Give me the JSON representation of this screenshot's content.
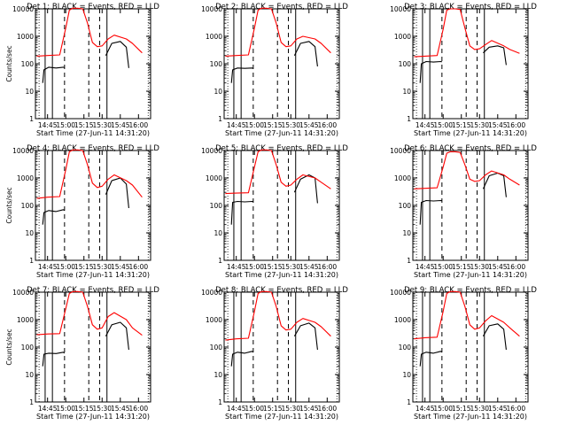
{
  "figure": {
    "colors": {
      "events": "#000000",
      "lld": "#ff0000",
      "axes": "#000000",
      "background": "#ffffff"
    }
  },
  "chart_data": [
    {
      "type": "line",
      "title": "Det 1: BLACK = Events, RED = LLD",
      "xlabel": "Start Time (27-Jun-11 14:31:20)",
      "ylabel": "Counts/sec",
      "yscale": "log",
      "xlim": [
        "14:35",
        "16:10"
      ],
      "ylim": [
        1,
        10000
      ],
      "xticks": [
        "14:45",
        "15:00",
        "15:15",
        "15:30",
        "15:45",
        "16:00"
      ],
      "yticks": [
        "1",
        "10",
        "100",
        "1000",
        "10000"
      ],
      "grid": false,
      "legend": "none",
      "solid_vlines": [
        "14:43",
        "14:49",
        "15:34"
      ],
      "dashed_vlines": [
        "14:59",
        "15:19",
        "15:28"
      ],
      "dotted_vlines": [
        "14:38",
        "16:08"
      ],
      "series": [
        {
          "name": "BLACK",
          "x": [
            "14:41",
            "14:42",
            "14:46",
            "14:52",
            "14:58",
            "14:59",
            "15:00",
            "15:30",
            "15:33",
            "15:38",
            "15:45",
            "15:50",
            "15:52"
          ],
          "y": [
            20,
            60,
            75,
            70,
            75,
            72,
            null,
            null,
            200,
            550,
            650,
            400,
            70
          ]
        },
        {
          "name": "RED",
          "x": [
            "14:36",
            "14:45",
            "14:55",
            "15:00",
            "15:03",
            "15:06",
            "15:10",
            "15:14",
            "15:18",
            "15:22",
            "15:26",
            "15:30",
            "15:35",
            "15:40",
            "15:50",
            "15:55",
            "16:03"
          ],
          "y": [
            190,
            200,
            210,
            2000,
            9000,
            10500,
            10500,
            10000,
            3000,
            600,
            420,
            450,
            800,
            1100,
            800,
            550,
            250
          ]
        }
      ]
    },
    {
      "type": "line",
      "title": "Det 2: BLACK = Events, RED = LLD",
      "xlabel": "Start Time (27-Jun-11 14:31:20)",
      "ylabel": "",
      "yscale": "log",
      "xlim": [
        "14:35",
        "16:10"
      ],
      "ylim": [
        1,
        10000
      ],
      "xticks": [
        "14:45",
        "15:00",
        "15:15",
        "15:30",
        "15:45",
        "16:00"
      ],
      "yticks": [
        "1",
        "10",
        "100",
        "1000",
        "10000"
      ],
      "grid": false,
      "legend": "none",
      "solid_vlines": [
        "14:43",
        "14:49",
        "15:34"
      ],
      "dashed_vlines": [
        "14:59",
        "15:19",
        "15:28"
      ],
      "dotted_vlines": [
        "14:38",
        "16:08"
      ],
      "series": [
        {
          "name": "BLACK",
          "x": [
            "14:41",
            "14:42",
            "14:46",
            "14:52",
            "14:58",
            "14:59",
            "15:00",
            "15:30",
            "15:33",
            "15:38",
            "15:45",
            "15:50",
            "15:52"
          ],
          "y": [
            20,
            60,
            70,
            68,
            70,
            68,
            null,
            null,
            200,
            550,
            650,
            420,
            80
          ]
        },
        {
          "name": "RED",
          "x": [
            "14:36",
            "14:45",
            "14:55",
            "15:00",
            "15:03",
            "15:06",
            "15:10",
            "15:14",
            "15:18",
            "15:22",
            "15:26",
            "15:30",
            "15:35",
            "15:40",
            "15:50",
            "15:55",
            "16:03"
          ],
          "y": [
            190,
            200,
            210,
            2000,
            9000,
            10500,
            10500,
            10000,
            3000,
            600,
            420,
            450,
            800,
            1000,
            800,
            550,
            250
          ]
        }
      ]
    },
    {
      "type": "line",
      "title": "Det 3: BLACK = Events, RED = LLD",
      "xlabel": "Start Time (27-Jun-11 14:31:20)",
      "ylabel": "",
      "yscale": "log",
      "xlim": [
        "14:35",
        "16:10"
      ],
      "ylim": [
        1,
        10000
      ],
      "xticks": [
        "14:45",
        "15:00",
        "15:15",
        "15:30",
        "15:45",
        "16:00"
      ],
      "yticks": [
        "1",
        "10",
        "100",
        "1000",
        "10000"
      ],
      "grid": false,
      "legend": "none",
      "solid_vlines": [
        "14:43",
        "14:49",
        "15:34"
      ],
      "dashed_vlines": [
        "14:59",
        "15:19",
        "15:28"
      ],
      "dotted_vlines": [
        "14:38",
        "16:08"
      ],
      "series": [
        {
          "name": "BLACK",
          "x": [
            "14:41",
            "14:42",
            "14:46",
            "14:52",
            "14:58",
            "14:59",
            "15:00",
            "15:30",
            "15:33",
            "15:38",
            "15:45",
            "15:50",
            "15:52"
          ],
          "y": [
            20,
            100,
            120,
            115,
            120,
            118,
            null,
            null,
            250,
            400,
            450,
            380,
            90
          ]
        },
        {
          "name": "RED",
          "x": [
            "14:36",
            "14:45",
            "14:55",
            "15:00",
            "15:03",
            "15:06",
            "15:10",
            "15:14",
            "15:18",
            "15:22",
            "15:26",
            "15:30",
            "15:35",
            "15:40",
            "15:50",
            "15:55",
            "16:03"
          ],
          "y": [
            180,
            190,
            200,
            1800,
            9000,
            10000,
            10000,
            9500,
            2000,
            450,
            330,
            350,
            500,
            700,
            450,
            330,
            240
          ]
        }
      ]
    },
    {
      "type": "line",
      "title": "Det 4: BLACK = Events, RED = LLD",
      "xlabel": "Start Time (27-Jun-11 14:31:20)",
      "ylabel": "Counts/sec",
      "yscale": "log",
      "xlim": [
        "14:35",
        "16:10"
      ],
      "ylim": [
        1,
        10000
      ],
      "xticks": [
        "14:45",
        "15:00",
        "15:15",
        "15:30",
        "15:45",
        "16:00"
      ],
      "yticks": [
        "1",
        "10",
        "100",
        "1000",
        "10000"
      ],
      "grid": false,
      "legend": "none",
      "solid_vlines": [
        "14:43",
        "14:49",
        "15:34"
      ],
      "dashed_vlines": [
        "14:59",
        "15:19",
        "15:28"
      ],
      "dotted_vlines": [
        "14:38",
        "16:08"
      ],
      "series": [
        {
          "name": "BLACK",
          "x": [
            "14:41",
            "14:42",
            "14:46",
            "14:52",
            "14:58",
            "14:59",
            "15:00",
            "15:30",
            "15:33",
            "15:38",
            "15:45",
            "15:50",
            "15:52"
          ],
          "y": [
            20,
            55,
            65,
            60,
            70,
            65,
            null,
            null,
            250,
            800,
            1000,
            600,
            80
          ]
        },
        {
          "name": "RED",
          "x": [
            "14:36",
            "14:45",
            "14:55",
            "15:00",
            "15:03",
            "15:06",
            "15:10",
            "15:14",
            "15:18",
            "15:22",
            "15:26",
            "15:30",
            "15:35",
            "15:40",
            "15:50",
            "15:55",
            "16:03"
          ],
          "y": [
            180,
            200,
            210,
            2000,
            9000,
            10500,
            10500,
            10000,
            3000,
            650,
            450,
            500,
            900,
            1300,
            800,
            550,
            200
          ]
        }
      ]
    },
    {
      "type": "line",
      "title": "Det 5: BLACK = Events, RED = LLD",
      "xlabel": "Start Time (27-Jun-11 14:31:20)",
      "ylabel": "",
      "yscale": "log",
      "xlim": [
        "14:35",
        "16:10"
      ],
      "ylim": [
        1,
        10000
      ],
      "xticks": [
        "14:45",
        "15:00",
        "15:15",
        "15:30",
        "15:45",
        "16:00"
      ],
      "yticks": [
        "1",
        "10",
        "100",
        "1000",
        "10000"
      ],
      "grid": false,
      "legend": "none",
      "solid_vlines": [
        "14:43",
        "14:49",
        "15:34"
      ],
      "dashed_vlines": [
        "14:59",
        "15:19",
        "15:28"
      ],
      "dotted_vlines": [
        "14:38",
        "16:08"
      ],
      "series": [
        {
          "name": "BLACK",
          "x": [
            "14:41",
            "14:42",
            "14:46",
            "14:52",
            "14:58",
            "14:59",
            "15:00",
            "15:30",
            "15:33",
            "15:38",
            "15:45",
            "15:50",
            "15:52"
          ],
          "y": [
            20,
            130,
            140,
            135,
            140,
            138,
            null,
            null,
            300,
            900,
            1300,
            1000,
            120
          ]
        },
        {
          "name": "RED",
          "x": [
            "14:36",
            "14:45",
            "14:55",
            "15:00",
            "15:03",
            "15:06",
            "15:10",
            "15:14",
            "15:18",
            "15:22",
            "15:26",
            "15:30",
            "15:35",
            "15:40",
            "15:50",
            "15:55",
            "16:03"
          ],
          "y": [
            270,
            280,
            290,
            2500,
            9000,
            10500,
            10500,
            10000,
            3000,
            700,
            500,
            550,
            900,
            1300,
            1000,
            700,
            400
          ]
        }
      ]
    },
    {
      "type": "line",
      "title": "Det 6: BLACK = Events, RED = LLD",
      "xlabel": "Start Time (27-Jun-11 14:31:20)",
      "ylabel": "",
      "yscale": "log",
      "xlim": [
        "14:35",
        "16:10"
      ],
      "ylim": [
        1,
        10000
      ],
      "xticks": [
        "14:45",
        "15:00",
        "15:15",
        "15:30",
        "15:45",
        "16:00"
      ],
      "yticks": [
        "1",
        "10",
        "100",
        "1000",
        "10000"
      ],
      "grid": false,
      "legend": "none",
      "solid_vlines": [
        "14:43",
        "14:49",
        "15:34"
      ],
      "dashed_vlines": [
        "14:59",
        "15:19",
        "15:28"
      ],
      "dotted_vlines": [
        "14:38",
        "16:08"
      ],
      "series": [
        {
          "name": "BLACK",
          "x": [
            "14:41",
            "14:42",
            "14:46",
            "14:52",
            "14:58",
            "14:59",
            "15:00",
            "15:30",
            "15:33",
            "15:38",
            "15:45",
            "15:50",
            "15:52"
          ],
          "y": [
            20,
            130,
            150,
            145,
            150,
            148,
            null,
            null,
            400,
            1200,
            1500,
            1200,
            200
          ]
        },
        {
          "name": "RED",
          "x": [
            "14:36",
            "14:45",
            "14:55",
            "15:00",
            "15:03",
            "15:06",
            "15:10",
            "15:14",
            "15:18",
            "15:22",
            "15:26",
            "15:30",
            "15:35",
            "15:40",
            "15:50",
            "15:55",
            "16:03"
          ],
          "y": [
            400,
            420,
            440,
            2500,
            8000,
            9000,
            9000,
            8500,
            3000,
            900,
            750,
            800,
            1300,
            1800,
            1300,
            900,
            550
          ]
        }
      ]
    },
    {
      "type": "line",
      "title": "Det 7: BLACK = Events, RED = LLD",
      "xlabel": "Start Time (27-Jun-11 14:31:20)",
      "ylabel": "Counts/sec",
      "yscale": "log",
      "xlim": [
        "14:35",
        "16:10"
      ],
      "ylim": [
        1,
        10000
      ],
      "xticks": [
        "14:45",
        "15:00",
        "15:15",
        "15:30",
        "15:45",
        "16:00"
      ],
      "yticks": [
        "1",
        "10",
        "100",
        "1000",
        "10000"
      ],
      "grid": false,
      "legend": "none",
      "solid_vlines": [
        "14:43",
        "14:49",
        "15:34"
      ],
      "dashed_vlines": [
        "14:59",
        "15:19",
        "15:28"
      ],
      "dotted_vlines": [
        "14:38",
        "16:08"
      ],
      "series": [
        {
          "name": "BLACK",
          "x": [
            "14:41",
            "14:42",
            "14:46",
            "14:52",
            "14:58",
            "14:59",
            "15:00",
            "15:30",
            "15:33",
            "15:38",
            "15:45",
            "15:50",
            "15:52"
          ],
          "y": [
            20,
            55,
            60,
            58,
            65,
            60,
            null,
            null,
            250,
            650,
            800,
            500,
            80
          ]
        },
        {
          "name": "RED",
          "x": [
            "14:36",
            "14:45",
            "14:55",
            "15:00",
            "15:03",
            "15:06",
            "15:10",
            "15:14",
            "15:18",
            "15:22",
            "15:26",
            "15:30",
            "15:35",
            "15:40",
            "15:50",
            "15:55",
            "16:03"
          ],
          "y": [
            280,
            300,
            310,
            2500,
            9000,
            10500,
            10500,
            10000,
            3000,
            650,
            450,
            500,
            1300,
            1800,
            1000,
            500,
            270
          ]
        }
      ]
    },
    {
      "type": "line",
      "title": "Det 8: BLACK = Events, RED = LLD",
      "xlabel": "Start Time (27-Jun-11 14:31:20)",
      "ylabel": "",
      "yscale": "log",
      "xlim": [
        "14:35",
        "16:10"
      ],
      "ylim": [
        1,
        10000
      ],
      "xticks": [
        "14:45",
        "15:00",
        "15:15",
        "15:30",
        "15:45",
        "16:00"
      ],
      "yticks": [
        "1",
        "10",
        "100",
        "1000",
        "10000"
      ],
      "grid": false,
      "legend": "none",
      "solid_vlines": [
        "14:43",
        "14:49",
        "15:34"
      ],
      "dashed_vlines": [
        "14:59",
        "15:19",
        "15:28"
      ],
      "dotted_vlines": [
        "14:38",
        "16:08"
      ],
      "series": [
        {
          "name": "BLACK",
          "x": [
            "14:41",
            "14:42",
            "14:46",
            "14:52",
            "14:58",
            "14:59",
            "15:00",
            "15:30",
            "15:33",
            "15:38",
            "15:45",
            "15:50",
            "15:52"
          ],
          "y": [
            20,
            55,
            65,
            60,
            70,
            65,
            null,
            null,
            250,
            600,
            750,
            500,
            80
          ]
        },
        {
          "name": "RED",
          "x": [
            "14:36",
            "14:45",
            "14:55",
            "15:00",
            "15:03",
            "15:06",
            "15:10",
            "15:14",
            "15:18",
            "15:22",
            "15:26",
            "15:30",
            "15:35",
            "15:40",
            "15:50",
            "15:55",
            "16:03"
          ],
          "y": [
            180,
            200,
            210,
            2000,
            9000,
            10500,
            10500,
            10000,
            3000,
            600,
            420,
            450,
            800,
            1100,
            800,
            550,
            250
          ]
        }
      ]
    },
    {
      "type": "line",
      "title": "Det 9: BLACK = Events, RED = LLD",
      "xlabel": "Start Time (27-Jun-11 14:31:20)",
      "ylabel": "",
      "yscale": "log",
      "xlim": [
        "14:35",
        "16:10"
      ],
      "ylim": [
        1,
        10000
      ],
      "xticks": [
        "14:45",
        "15:00",
        "15:15",
        "15:30",
        "15:45",
        "16:00"
      ],
      "yticks": [
        "1",
        "10",
        "100",
        "1000",
        "10000"
      ],
      "grid": false,
      "legend": "none",
      "solid_vlines": [
        "14:43",
        "14:49",
        "15:34"
      ],
      "dashed_vlines": [
        "14:59",
        "15:19",
        "15:28"
      ],
      "dotted_vlines": [
        "14:38",
        "16:08"
      ],
      "series": [
        {
          "name": "BLACK",
          "x": [
            "14:41",
            "14:42",
            "14:46",
            "14:52",
            "14:58",
            "14:59",
            "15:00",
            "15:30",
            "15:33",
            "15:38",
            "15:45",
            "15:50",
            "15:52"
          ],
          "y": [
            20,
            55,
            65,
            60,
            70,
            65,
            null,
            null,
            250,
            600,
            700,
            450,
            80
          ]
        },
        {
          "name": "RED",
          "x": [
            "14:36",
            "14:45",
            "14:55",
            "15:00",
            "15:03",
            "15:06",
            "15:10",
            "15:14",
            "15:18",
            "15:22",
            "15:26",
            "15:30",
            "15:35",
            "15:40",
            "15:50",
            "15:55",
            "16:03"
          ],
          "y": [
            200,
            220,
            230,
            2000,
            9000,
            10500,
            10500,
            10000,
            3000,
            650,
            450,
            500,
            900,
            1400,
            800,
            500,
            250
          ]
        }
      ]
    }
  ]
}
